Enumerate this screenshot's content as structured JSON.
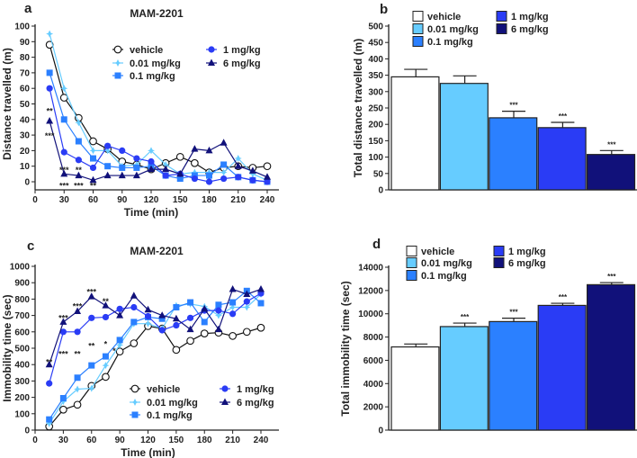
{
  "colors": {
    "vehicle": "#ffffff",
    "0.01 mg/kg": "#66ccff",
    "0.1 mg/kg": "#2b80ff",
    "1 mg/kg": "#2a3cf5",
    "6 mg/kg": "#11117a"
  },
  "chart_data": [
    {
      "panel": "a",
      "type": "line",
      "title": "MAM-2201",
      "xlabel": "Time (min)",
      "ylabel": "Distance travelled (m)",
      "xlim": [
        0,
        240
      ],
      "ylim": [
        0,
        100
      ],
      "xticks": [
        0,
        30,
        60,
        90,
        120,
        150,
        180,
        210,
        240
      ],
      "yticks": [
        0,
        10,
        20,
        30,
        40,
        50,
        60,
        70,
        80,
        90,
        100
      ],
      "x": [
        15,
        30,
        45,
        60,
        75,
        90,
        105,
        120,
        135,
        150,
        165,
        180,
        195,
        210,
        225,
        240
      ],
      "series": [
        {
          "name": "vehicle",
          "marker": "open-circle",
          "values": [
            88,
            54,
            41,
            26,
            21,
            13,
            11,
            8,
            12,
            16,
            12,
            6,
            9,
            10,
            9,
            10
          ]
        },
        {
          "name": "0.01 mg/kg",
          "marker": "diamond",
          "values": [
            95,
            60,
            38,
            20,
            20,
            10,
            11,
            20,
            11,
            5,
            6,
            6,
            6,
            15,
            5,
            1
          ]
        },
        {
          "name": "0.1 mg/kg",
          "marker": "square",
          "values": [
            70,
            40,
            26,
            15,
            10,
            9,
            9,
            10,
            4,
            2,
            4,
            4,
            11,
            3,
            1,
            0
          ]
        },
        {
          "name": "1 mg/kg",
          "marker": "circle",
          "values": [
            60,
            19,
            14,
            9,
            23,
            20,
            15,
            13,
            4,
            5,
            2,
            0,
            2,
            3,
            1,
            0
          ]
        },
        {
          "name": "6 mg/kg",
          "marker": "triangle",
          "values": [
            39,
            5,
            4,
            1,
            4,
            4,
            4,
            8,
            8,
            5,
            21,
            20,
            25,
            10,
            7,
            3
          ]
        }
      ],
      "annotations": [
        {
          "text": "**",
          "x": 15,
          "y": 46
        },
        {
          "text": "***",
          "x": 15,
          "y": 30
        },
        {
          "text": "***",
          "x": 30,
          "y": 8
        },
        {
          "text": "***",
          "x": 30,
          "y": -2
        },
        {
          "text": "**",
          "x": 45,
          "y": 8
        },
        {
          "text": "***",
          "x": 45,
          "y": -2
        },
        {
          "text": "**",
          "x": 60,
          "y": -2
        }
      ]
    },
    {
      "panel": "b",
      "type": "bar",
      "ylabel": "Total distance travelled (m)",
      "ylim": [
        0,
        500
      ],
      "yticks": [
        0,
        50,
        100,
        150,
        200,
        250,
        300,
        350,
        400,
        450,
        500
      ],
      "categories": [
        "vehicle",
        "0.01 mg/kg",
        "0.1 mg/kg",
        "1 mg/kg",
        "6 mg/kg"
      ],
      "values": [
        345,
        325,
        220,
        190,
        108
      ],
      "errors": [
        23,
        23,
        20,
        16,
        12
      ],
      "significance": [
        "",
        "",
        "***",
        "***",
        "***"
      ]
    },
    {
      "panel": "c",
      "type": "line",
      "title": "MAM-2201",
      "xlabel": "Time (min)",
      "ylabel": "Immobility time (sec)",
      "xlim": [
        0,
        240
      ],
      "ylim": [
        0,
        1000
      ],
      "xticks": [
        0,
        30,
        60,
        90,
        120,
        150,
        180,
        210,
        240
      ],
      "yticks": [
        0,
        100,
        200,
        300,
        400,
        500,
        600,
        700,
        800,
        900,
        1000
      ],
      "x": [
        15,
        30,
        45,
        60,
        75,
        90,
        105,
        120,
        135,
        150,
        165,
        180,
        195,
        210,
        225,
        240
      ],
      "series": [
        {
          "name": "vehicle",
          "marker": "open-circle",
          "values": [
            22,
            125,
            155,
            270,
            325,
            480,
            530,
            635,
            620,
            490,
            545,
            590,
            595,
            575,
            600,
            625
          ]
        },
        {
          "name": "0.01 mg/kg",
          "marker": "diamond",
          "values": [
            40,
            175,
            250,
            255,
            395,
            520,
            650,
            650,
            620,
            760,
            770,
            755,
            700,
            750,
            750,
            830
          ]
        },
        {
          "name": "0.1 mg/kg",
          "marker": "square",
          "values": [
            65,
            195,
            320,
            395,
            450,
            550,
            660,
            690,
            680,
            750,
            780,
            660,
            765,
            780,
            850,
            775
          ]
        },
        {
          "name": "1 mg/kg",
          "marker": "circle",
          "values": [
            285,
            600,
            600,
            685,
            690,
            740,
            750,
            695,
            610,
            640,
            685,
            730,
            730,
            710,
            785,
            835
          ]
        },
        {
          "name": "6 mg/kg",
          "marker": "triangle",
          "values": [
            400,
            660,
            725,
            815,
            760,
            700,
            820,
            735,
            700,
            680,
            615,
            740,
            615,
            860,
            830,
            860
          ]
        }
      ],
      "annotations": [
        {
          "text": "**",
          "x": 15,
          "y": 420
        },
        {
          "text": "***",
          "x": 30,
          "y": 690
        },
        {
          "text": "***",
          "x": 30,
          "y": 470
        },
        {
          "text": "***",
          "x": 45,
          "y": 760
        },
        {
          "text": "**",
          "x": 45,
          "y": 470
        },
        {
          "text": "***",
          "x": 60,
          "y": 850
        },
        {
          "text": "**",
          "x": 60,
          "y": 520
        },
        {
          "text": "**",
          "x": 75,
          "y": 790
        },
        {
          "text": "*",
          "x": 75,
          "y": 530
        },
        {
          "text": "*",
          "x": 84,
          "y": 490
        }
      ]
    },
    {
      "panel": "d",
      "type": "bar",
      "ylabel": "Total immobility time (sec)",
      "ylim": [
        0,
        14000
      ],
      "yticks": [
        0,
        2000,
        4000,
        6000,
        8000,
        10000,
        12000,
        14000
      ],
      "categories": [
        "vehicle",
        "0.01 mg/kg",
        "0.1 mg/kg",
        "1 mg/kg",
        "6 mg/kg"
      ],
      "values": [
        7150,
        8900,
        9330,
        10720,
        12500
      ],
      "errors": [
        250,
        300,
        290,
        180,
        180
      ],
      "significance": [
        "",
        "***",
        "***",
        "***",
        "***"
      ]
    }
  ]
}
